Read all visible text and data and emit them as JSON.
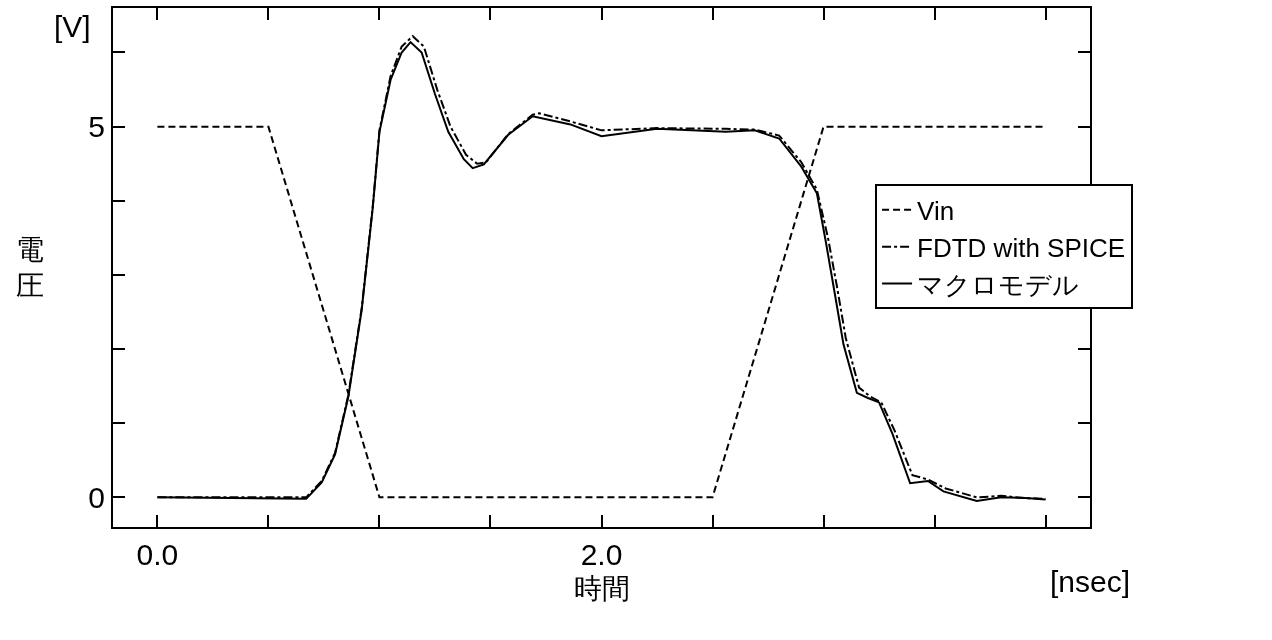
{
  "chart_data": {
    "type": "line",
    "xlabel": "時間",
    "ylabel": "電圧",
    "annotations": [
      "[V]",
      "[nsec]"
    ],
    "xlim": [
      -0.2,
      4.2
    ],
    "xticks": [
      {
        "value": 0,
        "label": "0.0"
      },
      {
        "value": 0.5,
        "label": null
      },
      {
        "value": 1,
        "label": null
      },
      {
        "value": 1.5,
        "label": null
      },
      {
        "value": 2,
        "label": "2.0"
      },
      {
        "value": 2.5,
        "label": null
      },
      {
        "value": 3,
        "label": null
      },
      {
        "value": 3.5,
        "label": null
      },
      {
        "value": 4,
        "label": null
      }
    ],
    "ylim": [
      -0.4,
      6.6
    ],
    "yticks": [
      0,
      {
        "value": 1,
        "label": null
      },
      {
        "value": 2,
        "label": null
      },
      {
        "value": 3,
        "label": null
      },
      {
        "value": 4,
        "label": null
      },
      5,
      {
        "value": 6,
        "label": null
      }
    ],
    "grid": false,
    "legend": "right",
    "marker": "none",
    "series": [
      {
        "name": "Vin",
        "color": "#000000",
        "line_style": "dashed",
        "x": [
          0,
          0.5,
          1,
          2.5,
          3,
          4
        ],
        "values": [
          5,
          5,
          0,
          0,
          5,
          5
        ]
      },
      {
        "name": "FDTD with SPICE",
        "color": "#000000",
        "line_style": "dashdot",
        "x": [
          0,
          0.67,
          0.74,
          0.8,
          0.86,
          0.92,
          0.97,
          1,
          1.05,
          1.1,
          1.15,
          1.2,
          1.26,
          1.32,
          1.39,
          1.44,
          1.48,
          1.58,
          1.69,
          1.72,
          1.86,
          2,
          2.25,
          2.56,
          2.69,
          2.8,
          2.9,
          2.97,
          3.02,
          3.06,
          3.1,
          3.16,
          3.21,
          3.26,
          3.32,
          3.4,
          3.47,
          3.55,
          3.69,
          3.8,
          3.91,
          4
        ],
        "values": [
          0,
          0,
          0.22,
          0.6,
          1.38,
          2.55,
          3.93,
          4.95,
          5.68,
          6.08,
          6.22,
          6.08,
          5.5,
          5,
          4.62,
          4.5,
          4.52,
          4.9,
          5.16,
          5.18,
          5.07,
          4.95,
          4.98,
          4.97,
          4.96,
          4.88,
          4.52,
          4.15,
          3.5,
          2.85,
          2.15,
          1.48,
          1.36,
          1.28,
          0.9,
          0.3,
          0.24,
          0.12,
          0,
          0.02,
          -0.01,
          -0.02
        ]
      },
      {
        "name": "マクロモデル",
        "color": "#000000",
        "line_style": "solid",
        "x": [
          0,
          0.67,
          0.74,
          0.8,
          0.86,
          0.92,
          0.97,
          1,
          1.05,
          1.1,
          1.14,
          1.19,
          1.25,
          1.31,
          1.38,
          1.42,
          1.47,
          1.58,
          1.69,
          1.86,
          2,
          2.25,
          2.56,
          2.69,
          2.8,
          2.9,
          2.97,
          3.01,
          3.05,
          3.09,
          3.15,
          3.2,
          3.25,
          3.31,
          3.39,
          3.47,
          3.54,
          3.69,
          3.8,
          3.91,
          4
        ],
        "values": [
          0,
          -0.02,
          0.2,
          0.58,
          1.36,
          2.53,
          3.91,
          4.93,
          5.63,
          6,
          6.14,
          6,
          5.44,
          4.93,
          4.56,
          4.44,
          4.49,
          4.89,
          5.14,
          5.03,
          4.87,
          4.97,
          4.93,
          4.95,
          4.84,
          4.46,
          4.1,
          3.45,
          2.76,
          2.06,
          1.41,
          1.34,
          1.28,
          0.86,
          0.19,
          0.22,
          0.08,
          -0.05,
          0,
          -0.01,
          -0.03
        ]
      }
    ]
  }
}
